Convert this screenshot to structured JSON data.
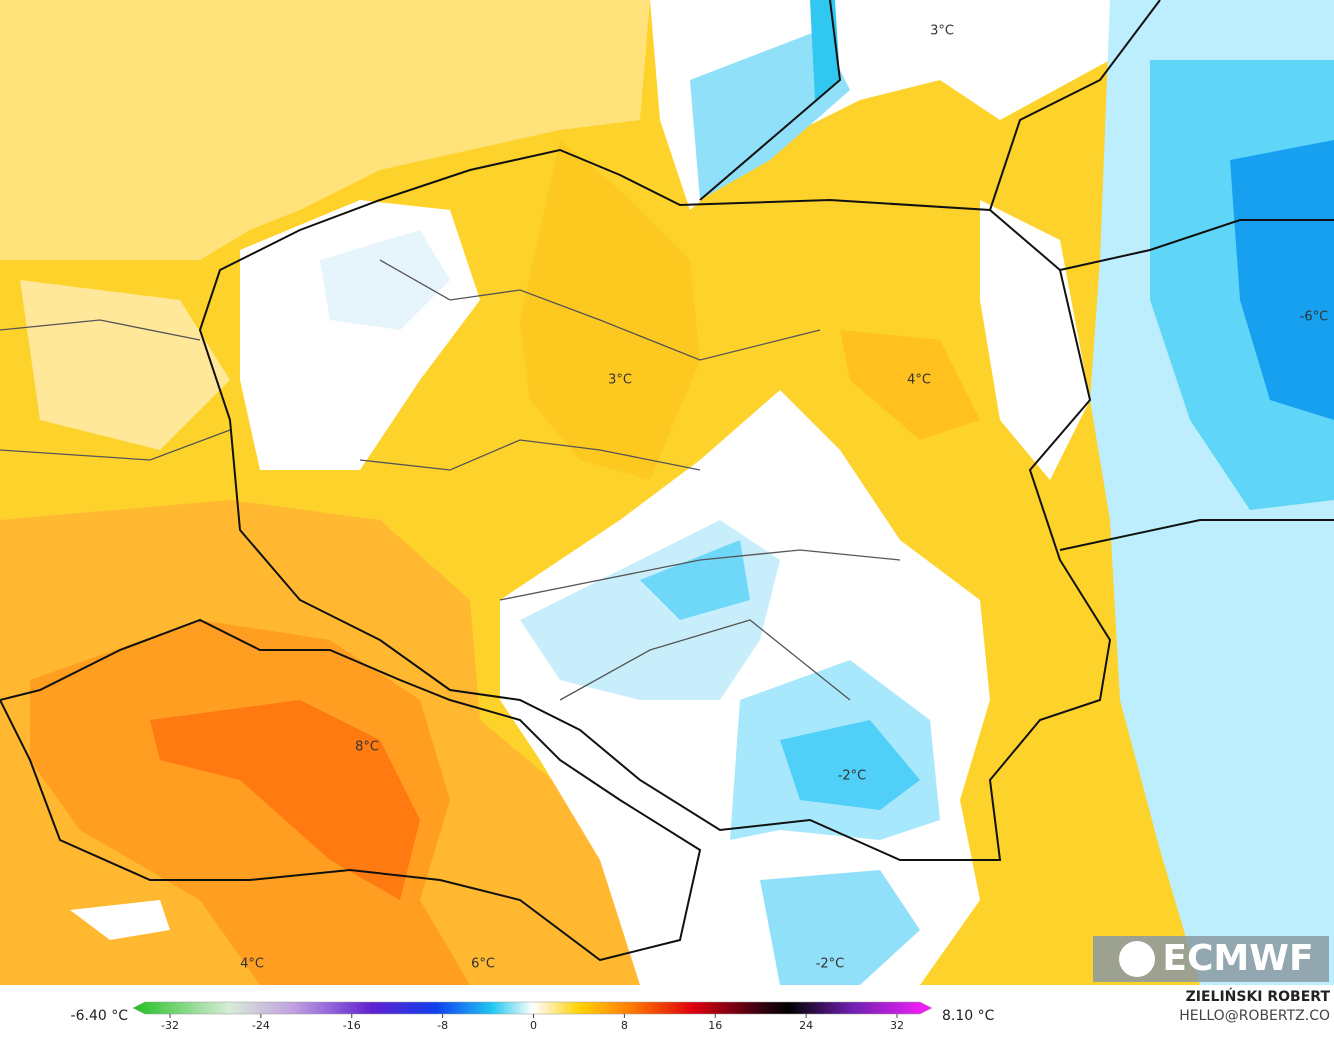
{
  "map": {
    "labels": [
      "3°C",
      "-6°C",
      "3°C",
      "4°C",
      "8°C",
      "-2°C",
      "4°C",
      "6°C",
      "-2°C"
    ],
    "logo": "ECMWF",
    "author": "ZIELIŃSKI ROBERT",
    "email": "HELLO@ROBERTZ.CO"
  },
  "colorbar": {
    "min_label": "-6.40 °C",
    "max_label": "8.10 °C",
    "ticks": [
      -32,
      -24,
      -16,
      -8,
      0,
      8,
      16,
      24,
      32
    ]
  }
}
